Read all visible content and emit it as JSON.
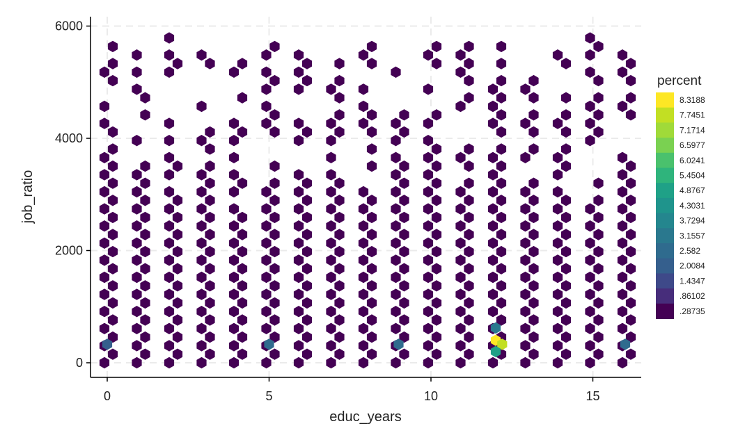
{
  "chart_data": {
    "type": "heatmap",
    "subtype": "hexbin",
    "xlabel": "educ_years",
    "ylabel": "job_ratio",
    "xlim": [
      -0.5,
      16.8
    ],
    "ylim": [
      -600,
      6250
    ],
    "x_ticks": [
      0,
      5,
      10,
      15
    ],
    "x_tick_labels": [
      "0",
      "5",
      "10",
      "15"
    ],
    "y_ticks": [
      0,
      2000,
      4000,
      6000
    ],
    "y_tick_labels": [
      "0",
      "2000",
      "4000",
      "6000"
    ],
    "grid": true,
    "legend": {
      "title": "percent",
      "position": "right",
      "labels": [
        "8.3188",
        "7.7451",
        "7.1714",
        "6.5977",
        "6.0241",
        "5.4504",
        "4.8767",
        "4.3031",
        "3.7294",
        "3.1557",
        "2.582",
        "2.0084",
        "1.4347",
        ".86102",
        ".28735"
      ],
      "colors": [
        "#fde725",
        "#c2df23",
        "#a0da39",
        "#7ad151",
        "#4ac16d",
        "#2fb47c",
        "#1fa187",
        "#1f948c",
        "#24868e",
        "#2a788e",
        "#2f6b8e",
        "#355f8d",
        "#3e4989",
        "#472d7b",
        "#440154"
      ]
    },
    "x_values": [
      0,
      1,
      2,
      3,
      4,
      5,
      6,
      7,
      8,
      9,
      10,
      11,
      12,
      13,
      14,
      15,
      16
    ],
    "highlights": [
      {
        "x": 12,
        "y": 400,
        "percent": 8.3
      },
      {
        "x": 12.2,
        "y": 330,
        "percent": 7.9
      },
      {
        "x": 12,
        "y": 200,
        "percent": 4.9
      },
      {
        "x": 12,
        "y": 620,
        "percent": 3.3
      },
      {
        "x": 9,
        "y": 330,
        "percent": 2.5
      },
      {
        "x": 5,
        "y": 330,
        "percent": 2.3
      },
      {
        "x": 16,
        "y": 330,
        "percent": 2.3
      },
      {
        "x": 0,
        "y": 330,
        "percent": 1.8
      }
    ]
  }
}
